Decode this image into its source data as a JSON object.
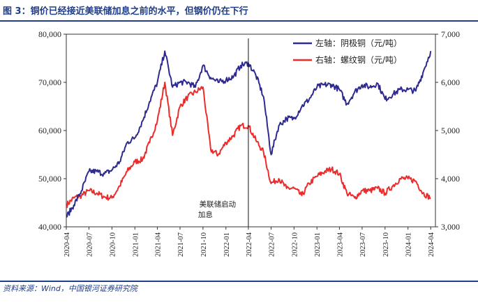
{
  "title": "图 3：铜价已经接近美联储加息之前的水平，但钢价仍在下行",
  "source": "资料来源：Wind，中国银河证券研究院",
  "chart_data": {
    "type": "line",
    "x_tick_labels": [
      "2020-04",
      "2020-07",
      "2020-10",
      "2021-01",
      "2021-04",
      "2021-07",
      "2021-10",
      "2022-01",
      "2022-04",
      "2022-07",
      "2022-10",
      "2023-01",
      "2023-04",
      "2023-07",
      "2023-10",
      "2024-01",
      "2024-04"
    ],
    "left_axis": {
      "min": 40000,
      "max": 80000,
      "ticks": [
        "40,000",
        "50,000",
        "60,000",
        "70,000",
        "80,000"
      ]
    },
    "right_axis": {
      "min": 3000,
      "max": 7000,
      "ticks": [
        "3,000",
        "4,000",
        "5,000",
        "6,000",
        "7,000"
      ]
    },
    "annotation": {
      "lines": [
        "美联储启动",
        "加息"
      ],
      "x_label": "2022-04"
    },
    "colors": {
      "copper": "#2e2a8f",
      "rebar": "#ee2b2b"
    },
    "series": [
      {
        "name": "左轴：阴极铜（元/吨）",
        "axis": "left",
        "points": [
          [
            "2020-04",
            42000
          ],
          [
            "2020-05",
            44500
          ],
          [
            "2020-06",
            47500
          ],
          [
            "2020-07",
            51500
          ],
          [
            "2020-08",
            51500
          ],
          [
            "2020-09",
            51000
          ],
          [
            "2020-10",
            51800
          ],
          [
            "2020-11",
            53500
          ],
          [
            "2020-12",
            57500
          ],
          [
            "2021-01",
            58500
          ],
          [
            "2021-02",
            62000
          ],
          [
            "2021-03",
            66000
          ],
          [
            "2021-04",
            70000
          ],
          [
            "2021-05",
            76500
          ],
          [
            "2021-06",
            69000
          ],
          [
            "2021-07",
            70000
          ],
          [
            "2021-08",
            70000
          ],
          [
            "2021-09",
            69000
          ],
          [
            "2021-10",
            73500
          ],
          [
            "2021-11",
            71000
          ],
          [
            "2021-12",
            70000
          ],
          [
            "2022-01",
            70500
          ],
          [
            "2022-02",
            71200
          ],
          [
            "2022-03",
            73500
          ],
          [
            "2022-04",
            74000
          ],
          [
            "2022-05",
            71500
          ],
          [
            "2022-06",
            67000
          ],
          [
            "2022-07",
            55000
          ],
          [
            "2022-08",
            61000
          ],
          [
            "2022-09",
            62500
          ],
          [
            "2022-10",
            62500
          ],
          [
            "2022-11",
            65000
          ],
          [
            "2022-12",
            66500
          ],
          [
            "2023-01",
            69000
          ],
          [
            "2023-02",
            69500
          ],
          [
            "2023-03",
            69500
          ],
          [
            "2023-04",
            68500
          ],
          [
            "2023-05",
            65500
          ],
          [
            "2023-06",
            68000
          ],
          [
            "2023-07",
            69500
          ],
          [
            "2023-08",
            69000
          ],
          [
            "2023-09",
            69800
          ],
          [
            "2023-10",
            66500
          ],
          [
            "2023-11",
            67500
          ],
          [
            "2023-12",
            68500
          ],
          [
            "2024-01",
            68500
          ],
          [
            "2024-02",
            68200
          ],
          [
            "2024-03",
            72000
          ],
          [
            "2024-04",
            76500
          ]
        ]
      },
      {
        "name": "右轴：螺纹钢（元/吨）",
        "axis": "right",
        "points": [
          [
            "2020-04",
            3450
          ],
          [
            "2020-05",
            3600
          ],
          [
            "2020-06",
            3650
          ],
          [
            "2020-07",
            3750
          ],
          [
            "2020-08",
            3700
          ],
          [
            "2020-09",
            3620
          ],
          [
            "2020-10",
            3600
          ],
          [
            "2020-11",
            3850
          ],
          [
            "2020-12",
            4150
          ],
          [
            "2021-01",
            4350
          ],
          [
            "2021-02",
            4400
          ],
          [
            "2021-03",
            4750
          ],
          [
            "2021-04",
            5200
          ],
          [
            "2021-05",
            6000
          ],
          [
            "2021-06",
            4900
          ],
          [
            "2021-07",
            5500
          ],
          [
            "2021-08",
            5700
          ],
          [
            "2021-09",
            5800
          ],
          [
            "2021-10",
            5900
          ],
          [
            "2021-11",
            4600
          ],
          [
            "2021-12",
            4500
          ],
          [
            "2022-01",
            4750
          ],
          [
            "2022-02",
            4900
          ],
          [
            "2022-03",
            5100
          ],
          [
            "2022-04",
            5100
          ],
          [
            "2022-05",
            4800
          ],
          [
            "2022-06",
            4550
          ],
          [
            "2022-07",
            3900
          ],
          [
            "2022-08",
            4000
          ],
          [
            "2022-09",
            3800
          ],
          [
            "2022-10",
            3800
          ],
          [
            "2022-11",
            3650
          ],
          [
            "2022-12",
            3900
          ],
          [
            "2023-01",
            4050
          ],
          [
            "2023-02",
            4150
          ],
          [
            "2023-03",
            4200
          ],
          [
            "2023-04",
            4100
          ],
          [
            "2023-05",
            3700
          ],
          [
            "2023-06",
            3600
          ],
          [
            "2023-07",
            3750
          ],
          [
            "2023-08",
            3750
          ],
          [
            "2023-09",
            3800
          ],
          [
            "2023-10",
            3700
          ],
          [
            "2023-11",
            3850
          ],
          [
            "2023-12",
            4000
          ],
          [
            "2024-01",
            4000
          ],
          [
            "2024-02",
            3950
          ],
          [
            "2024-03",
            3700
          ],
          [
            "2024-04",
            3600
          ]
        ]
      }
    ]
  }
}
